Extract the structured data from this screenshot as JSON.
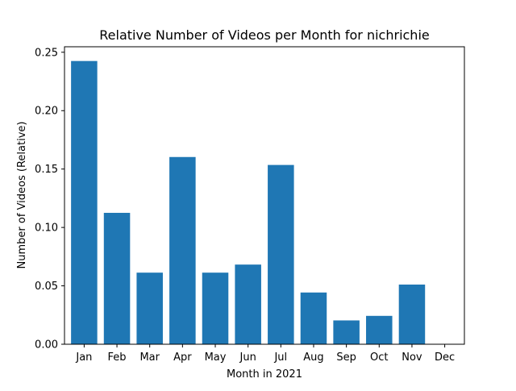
{
  "chart_data": {
    "type": "bar",
    "title": "Relative Number of Videos per Month for nichrichie",
    "xlabel": "Month in 2021",
    "ylabel": "Number of Videos (Relative)",
    "categories": [
      "Jan",
      "Feb",
      "Mar",
      "Apr",
      "May",
      "Jun",
      "Jul",
      "Aug",
      "Sep",
      "Oct",
      "Nov",
      "Dec"
    ],
    "values": [
      0.2425,
      0.1125,
      0.0613,
      0.1603,
      0.0613,
      0.0682,
      0.1535,
      0.0443,
      0.0204,
      0.0243,
      0.0511,
      0.0
    ],
    "ylim": [
      0,
      0.2547
    ],
    "yticks": [
      0.0,
      0.05,
      0.1,
      0.15,
      0.2,
      0.25
    ],
    "ytick_labels": [
      "0.00",
      "0.05",
      "0.10",
      "0.15",
      "0.20",
      "0.25"
    ],
    "grid": false,
    "bar_color": "#1f77b4"
  }
}
